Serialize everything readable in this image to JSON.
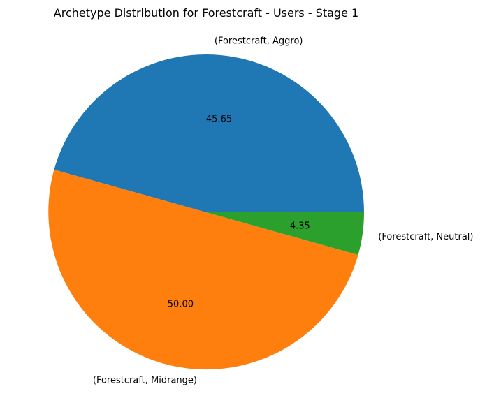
{
  "chart_data": {
    "type": "pie",
    "title": "Archetype Distribution for Forestcraft - Users - Stage 1",
    "slices": [
      {
        "label": "(Forestcraft, Aggro)",
        "value": 45.65,
        "value_label": "45.65",
        "color": "#1f77b4"
      },
      {
        "label": "(Forestcraft, Midrange)",
        "value": 50.0,
        "value_label": "50.00",
        "color": "#ff7f0e"
      },
      {
        "label": "(Forestcraft, Neutral)",
        "value": 4.35,
        "value_label": "4.35",
        "color": "#2ca02c"
      }
    ],
    "start_angle_deg": 0,
    "direction": "counterclockwise",
    "legend": "none"
  }
}
